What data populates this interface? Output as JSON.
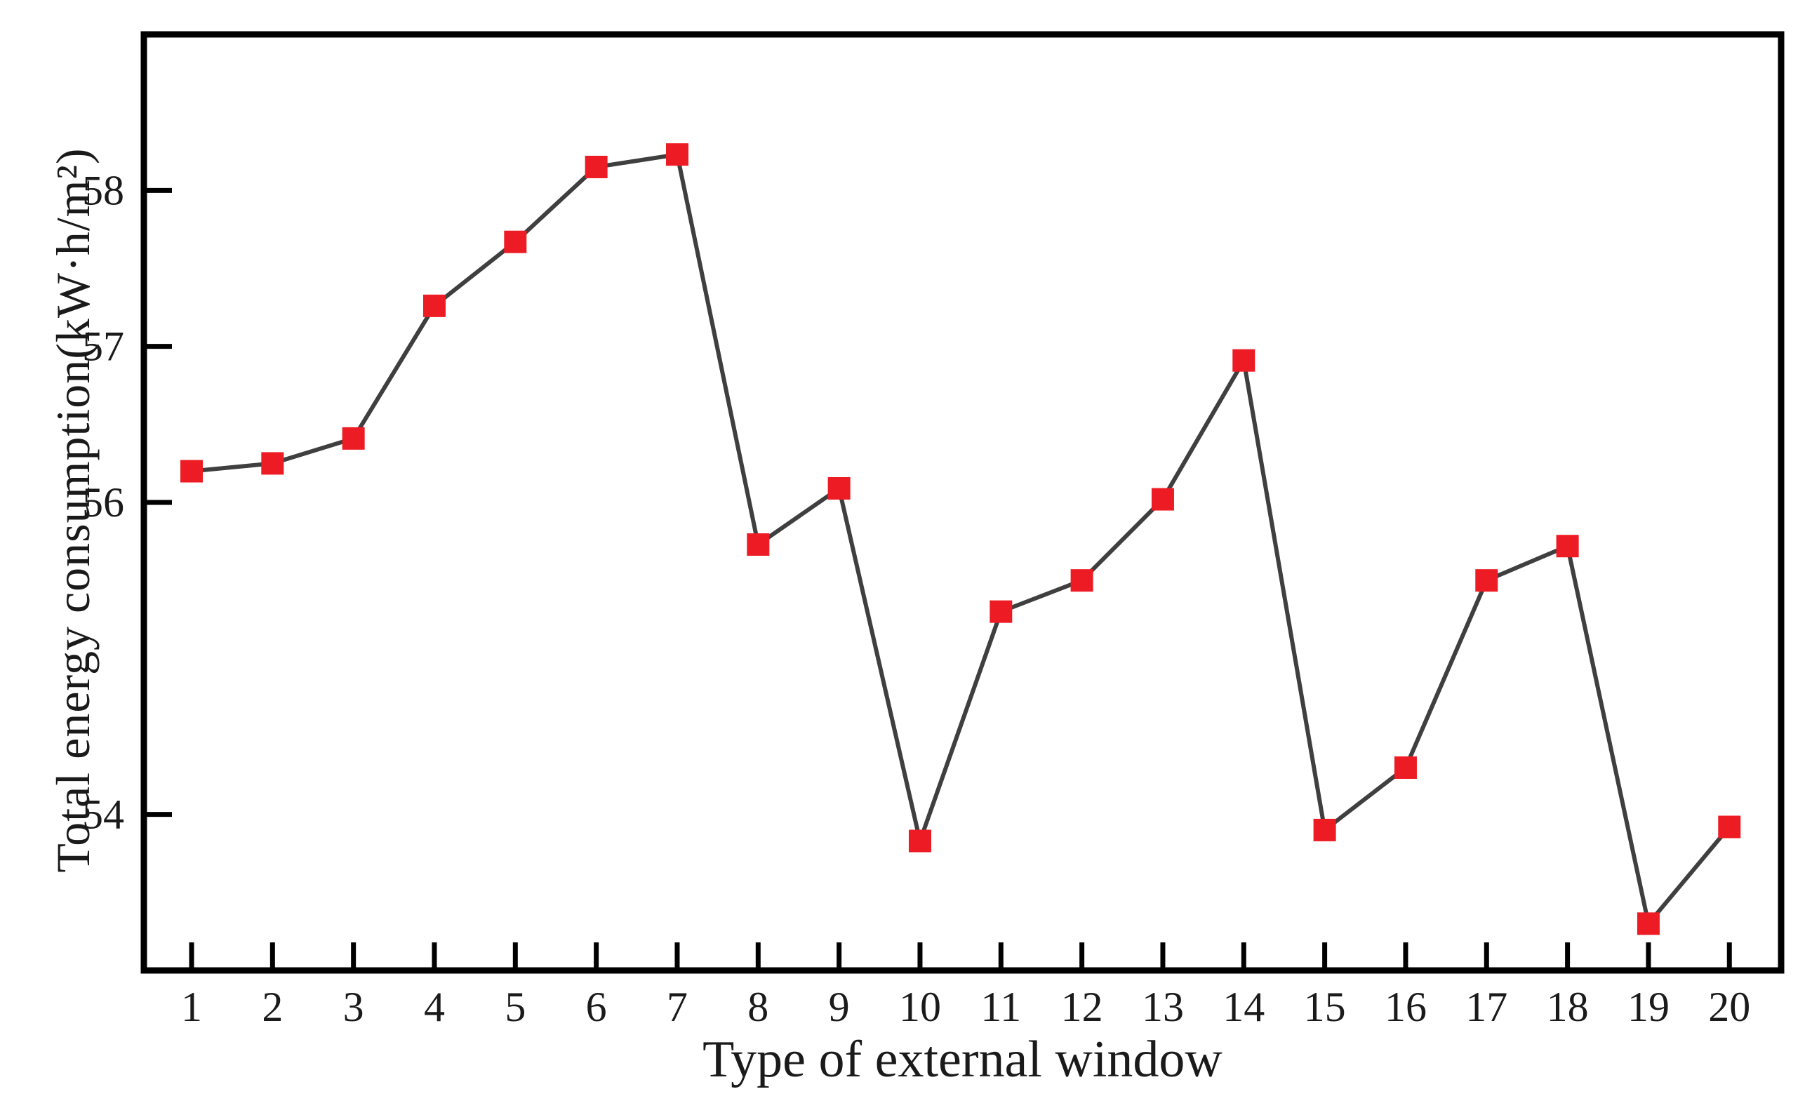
{
  "chart_data": {
    "type": "line",
    "title": "",
    "xlabel": "Type of external window",
    "ylabel": "Total energy consumption(kW·h/m²)",
    "categories": [
      1,
      2,
      3,
      4,
      5,
      6,
      7,
      8,
      9,
      10,
      11,
      12,
      13,
      14,
      15,
      16,
      17,
      18,
      19,
      20
    ],
    "values": [
      56.2,
      56.25,
      56.41,
      57.26,
      57.67,
      58.15,
      58.23,
      55.73,
      56.09,
      53.83,
      55.3,
      55.5,
      56.02,
      56.91,
      53.9,
      54.3,
      55.5,
      55.72,
      53.3,
      53.92
    ],
    "ylim": [
      53,
      59
    ],
    "yticks": [
      54,
      56,
      57,
      58
    ],
    "grid": false,
    "legend": "none",
    "line_color": "#3f3f3f",
    "marker_color": "#ed1c24",
    "marker_shape": "square",
    "axis_color": "#000000",
    "tick_label_color": "#1a1a1a"
  }
}
